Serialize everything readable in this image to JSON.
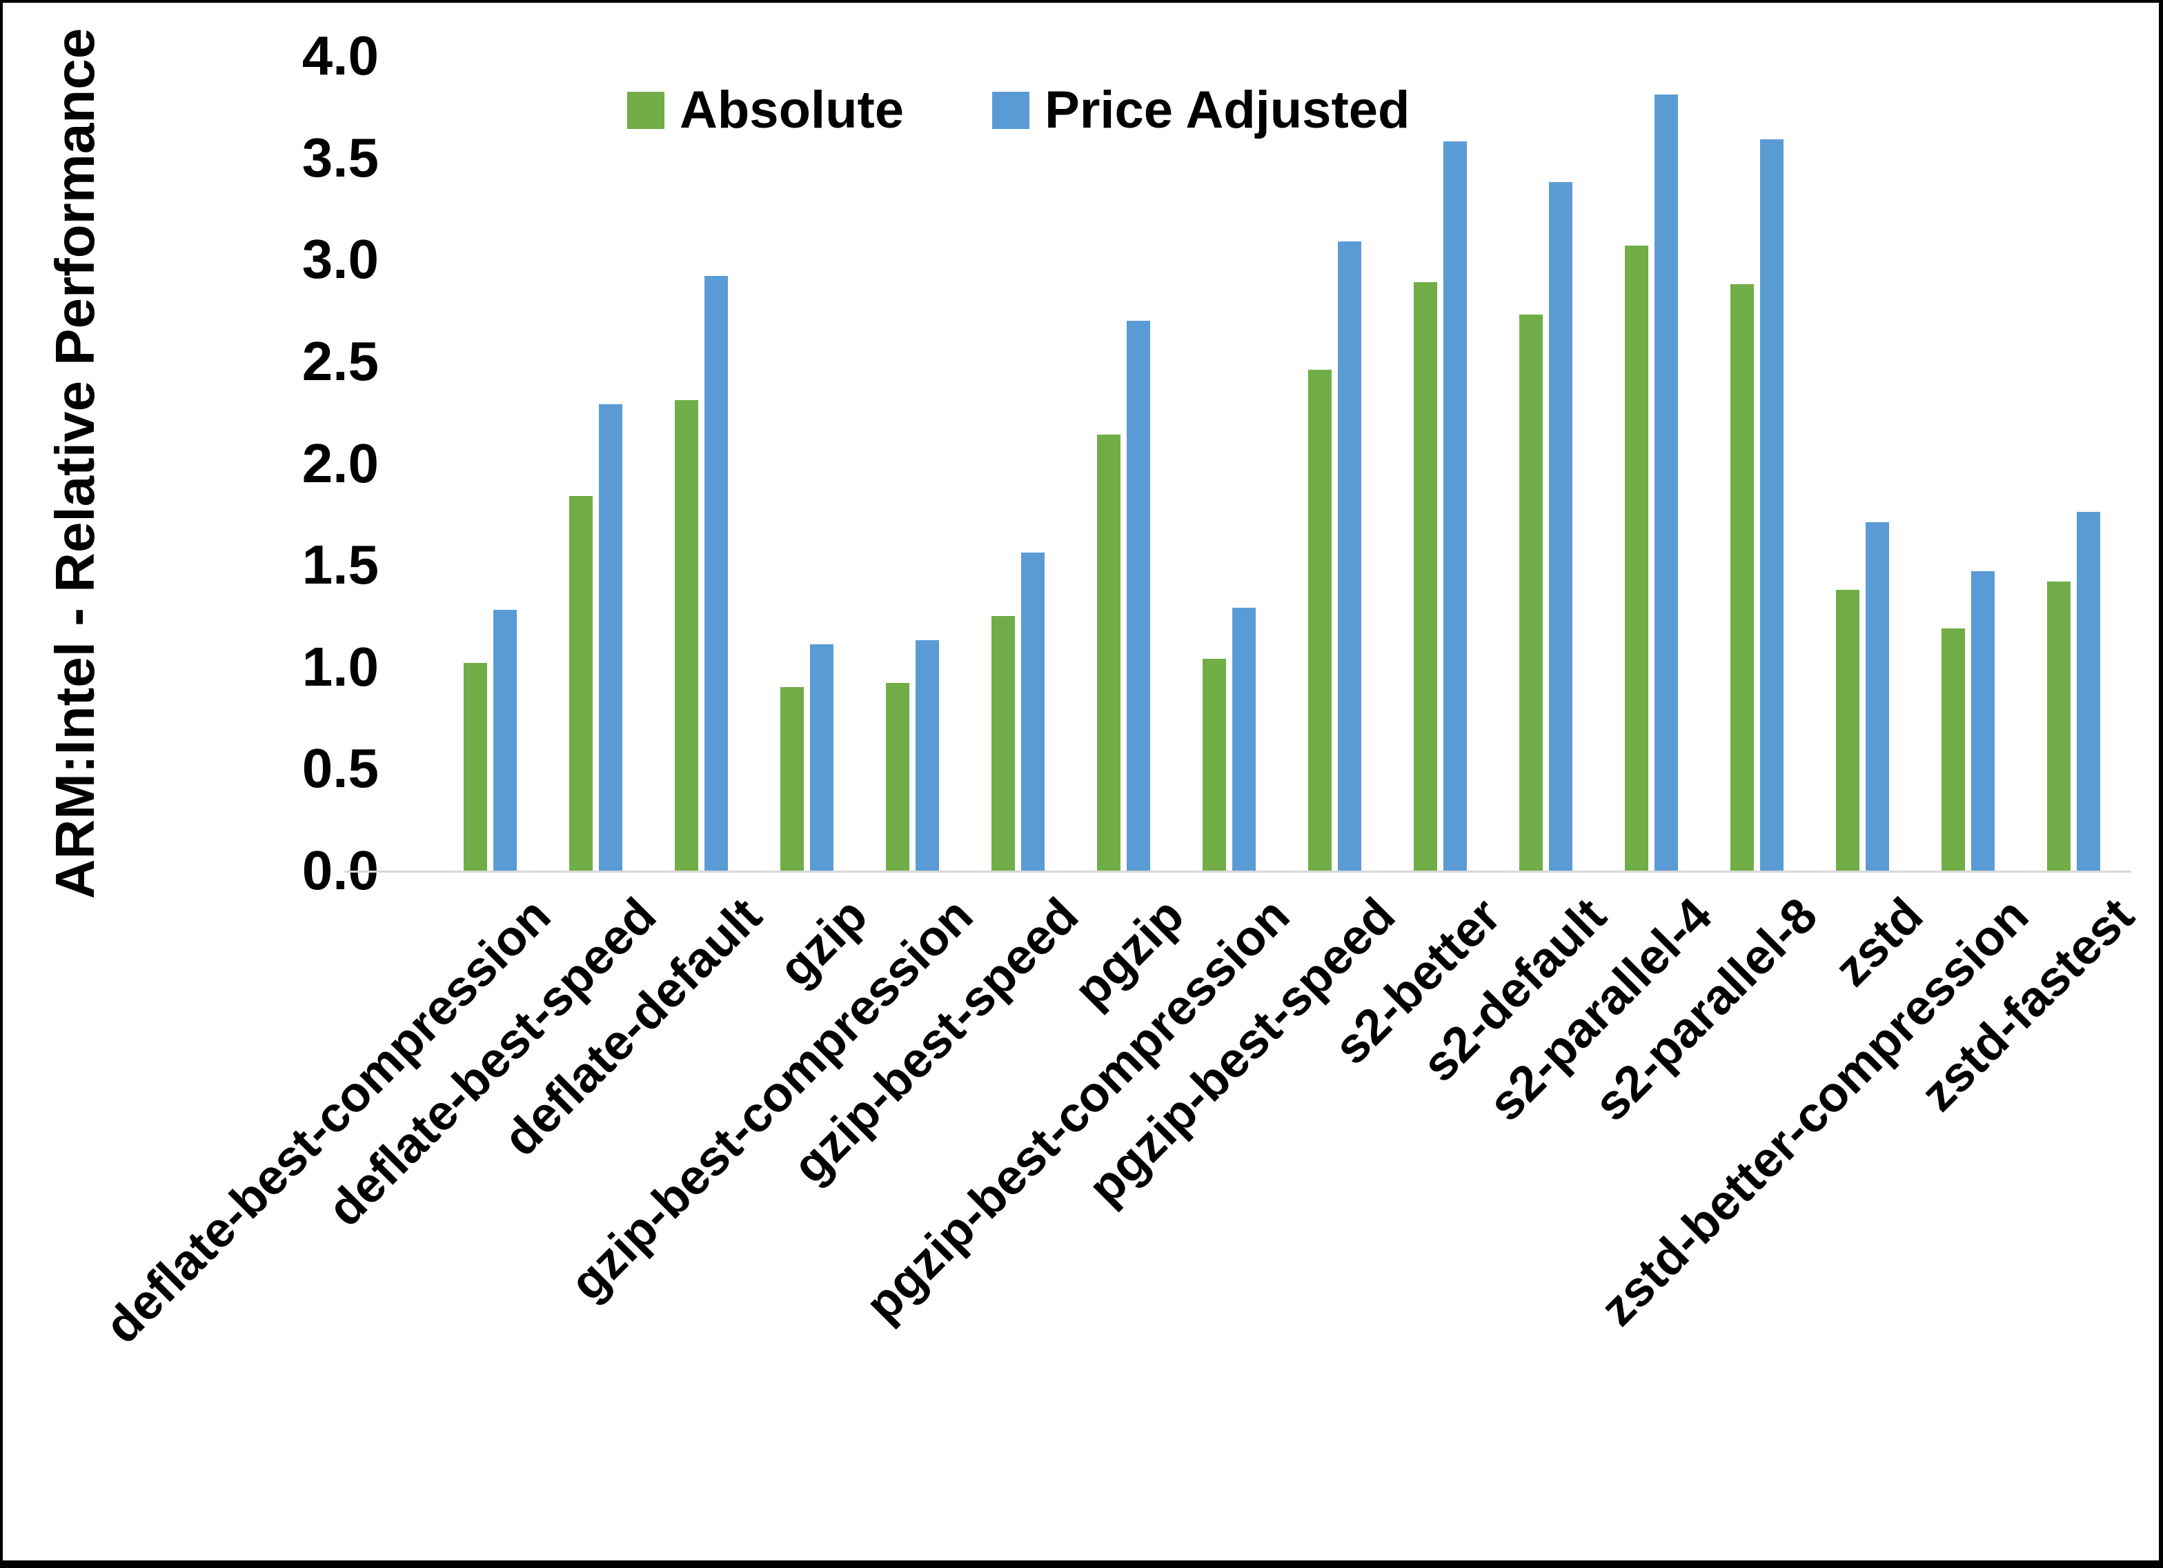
{
  "chart_data": {
    "type": "bar",
    "title": "",
    "xlabel": "",
    "ylabel": "ARM:Intel - Relative Performance",
    "ylim": [
      0.0,
      4.0
    ],
    "ytick_step": 0.5,
    "yticks": [
      "0.0",
      "0.5",
      "1.0",
      "1.5",
      "2.0",
      "2.5",
      "3.0",
      "3.5",
      "4.0"
    ],
    "grid": false,
    "legend_position": "top-center",
    "categories": [
      "deflate-best-compression",
      "deflate-best-speed",
      "deflate-default",
      "gzip",
      "gzip-best-compression",
      "gzip-best-speed",
      "pgzip",
      "pgzip-best-compression",
      "pgzip-best-speed",
      "s2-better",
      "s2-default",
      "s2-parallel-4",
      "s2-parallel-8",
      "zstd",
      "zstd-better-compression",
      "zstd-fastest"
    ],
    "series": [
      {
        "name": "Absolute",
        "color": "#70AD47",
        "values": [
          1.02,
          1.84,
          2.31,
          0.9,
          0.92,
          1.25,
          2.14,
          1.04,
          2.46,
          2.89,
          2.73,
          3.07,
          2.88,
          1.38,
          1.19,
          1.42
        ]
      },
      {
        "name": "Price Adjusted",
        "color": "#5B9BD5",
        "values": [
          1.28,
          2.29,
          2.92,
          1.11,
          1.13,
          1.56,
          2.7,
          1.29,
          3.09,
          3.58,
          3.38,
          3.81,
          3.59,
          1.71,
          1.47,
          1.76
        ]
      }
    ]
  },
  "legend": {
    "items": [
      {
        "label": "Absolute",
        "color": "#70AD47"
      },
      {
        "label": "Price Adjusted",
        "color": "#5B9BD5"
      }
    ]
  },
  "axis": {
    "baseline_color": "#D9D9D9"
  }
}
